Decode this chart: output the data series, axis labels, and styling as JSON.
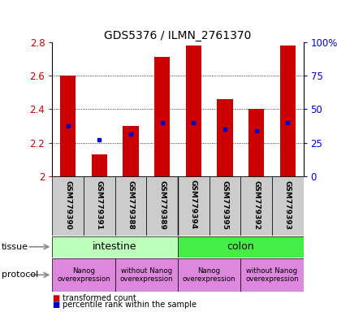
{
  "title": "GDS5376 / ILMN_2761370",
  "samples": [
    "GSM779390",
    "GSM779391",
    "GSM779388",
    "GSM779389",
    "GSM779394",
    "GSM779395",
    "GSM779392",
    "GSM779393"
  ],
  "bar_values": [
    2.6,
    2.13,
    2.3,
    2.71,
    2.78,
    2.46,
    2.4,
    2.78
  ],
  "blue_dot_values": [
    2.3,
    2.22,
    2.25,
    2.32,
    2.32,
    2.28,
    2.27,
    2.32
  ],
  "ymin": 2.0,
  "ymax": 2.8,
  "yticks_left": [
    2.0,
    2.2,
    2.4,
    2.6,
    2.8
  ],
  "ytick_labels_left": [
    "2",
    "2.2",
    "2.4",
    "2.6",
    "2.8"
  ],
  "yticks_right": [
    0,
    25,
    50,
    75,
    100
  ],
  "ytick_labels_right": [
    "0",
    "25",
    "50",
    "75",
    "100%"
  ],
  "grid_lines": [
    2.2,
    2.4,
    2.6
  ],
  "bar_color": "#cc0000",
  "dot_color": "#0000cc",
  "sample_box_color": "#cccccc",
  "tissue_intestine_color": "#bbffbb",
  "tissue_colon_color": "#44ee44",
  "protocol_color": "#dd88dd",
  "legend_red": "transformed count",
  "legend_blue": "percentile rank within the sample",
  "arrow_color": "#888888",
  "title_fontsize": 10,
  "bar_width": 0.5
}
